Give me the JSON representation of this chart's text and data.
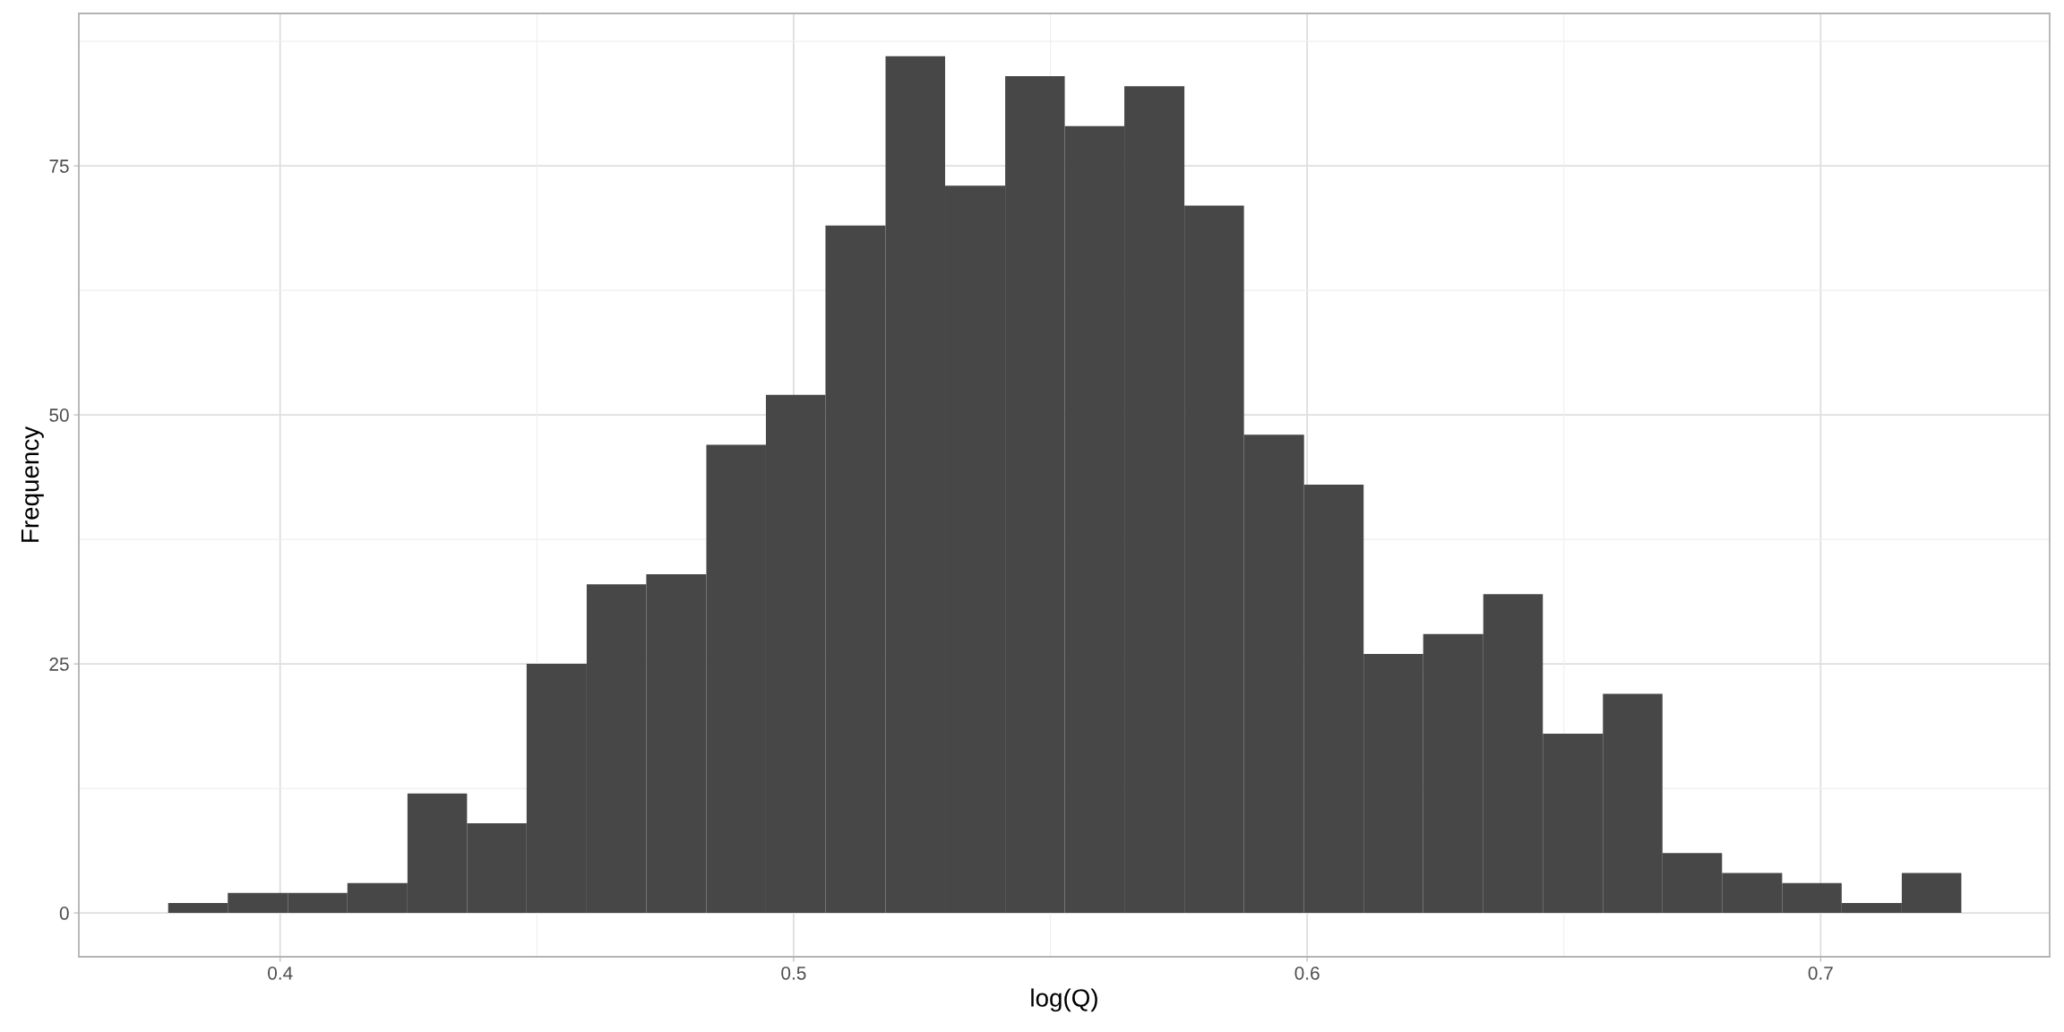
{
  "chart_data": {
    "type": "histogram",
    "xlabel": "log(Q)",
    "ylabel": "Frequency",
    "bins": [
      0.3782,
      0.3898,
      0.4015,
      0.4131,
      0.4248,
      0.4364,
      0.448,
      0.4597,
      0.4713,
      0.483,
      0.4946,
      0.5062,
      0.5179,
      0.5295,
      0.5412,
      0.5528,
      0.5644,
      0.5761,
      0.5877,
      0.5994,
      0.611,
      0.6226,
      0.6343,
      0.6459,
      0.6576,
      0.6692,
      0.6808,
      0.6925,
      0.7041,
      0.7158,
      0.7274
    ],
    "values": [
      1,
      2,
      2,
      3,
      12,
      9,
      25,
      33,
      34,
      47,
      52,
      69,
      86,
      73,
      84,
      79,
      83,
      71,
      48,
      43,
      26,
      28,
      32,
      18,
      22,
      6,
      4,
      3,
      1,
      4
    ],
    "color": "#474747",
    "xlim": [
      0.3608,
      0.7446
    ],
    "ylim": [
      -4.4,
      90.3
    ],
    "xticks": [
      0.4,
      0.5,
      0.6,
      0.7
    ],
    "yticks": [
      0,
      25,
      50,
      75
    ],
    "grid": true
  }
}
